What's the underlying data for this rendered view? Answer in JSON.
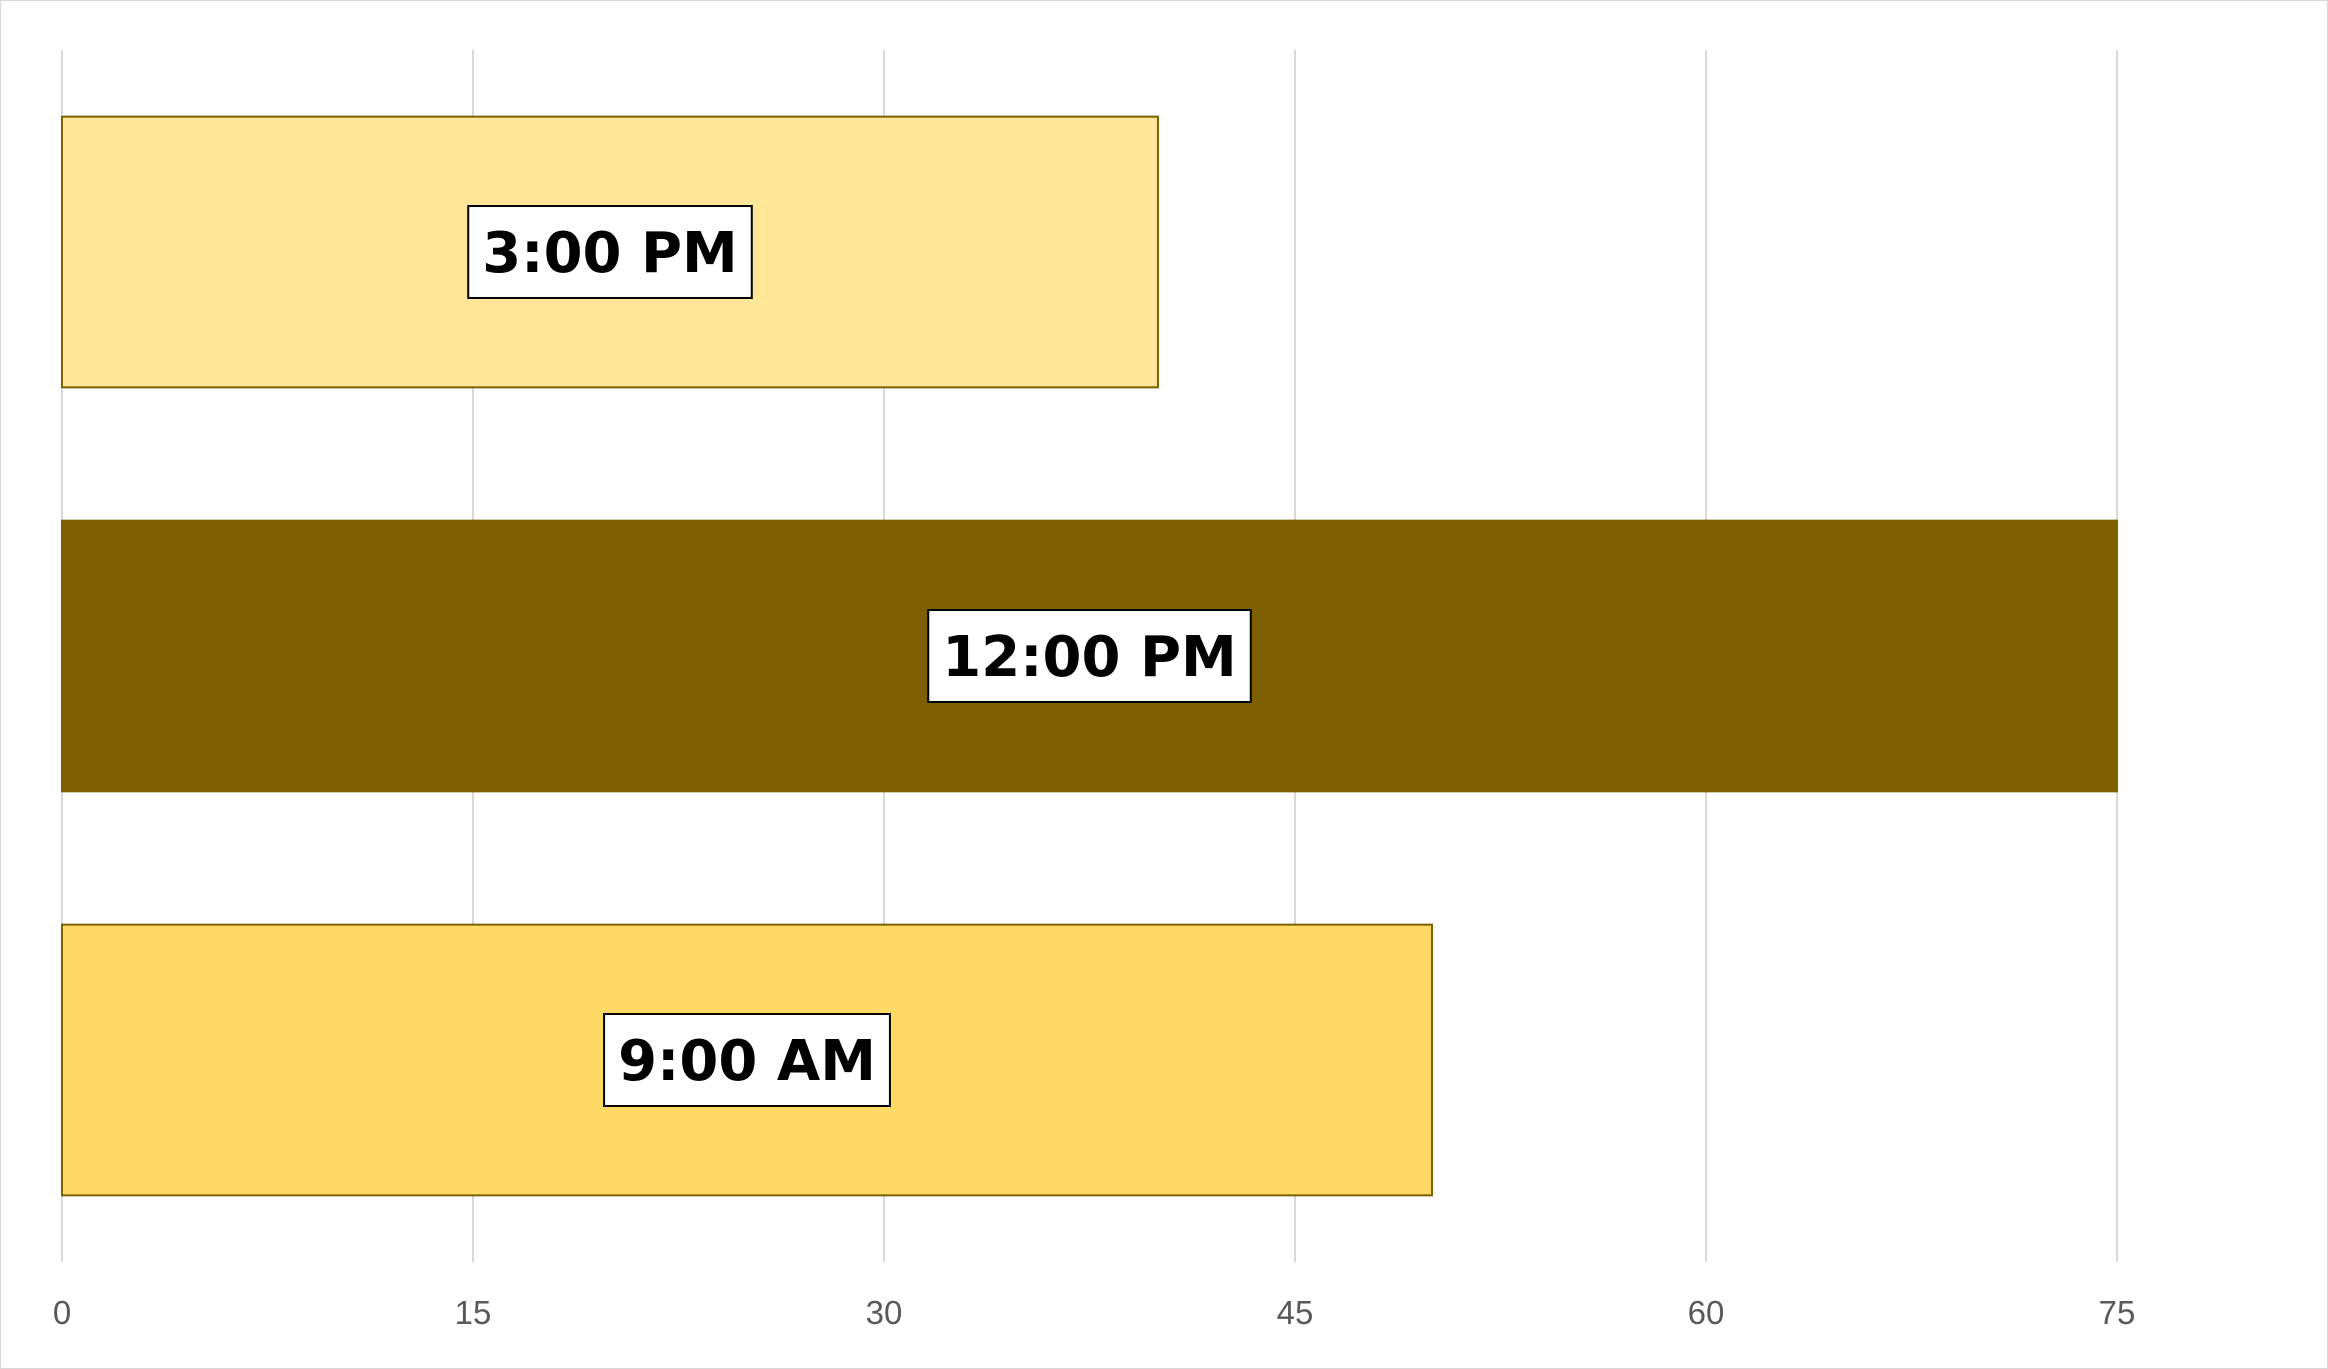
{
  "chart_data": {
    "type": "bar",
    "orientation": "horizontal",
    "categories": [
      "9:00 AM",
      "12:00 PM",
      "3:00 PM"
    ],
    "values": [
      50,
      75,
      40
    ],
    "colors": [
      "#FFD966",
      "#7F6000",
      "#FFE699"
    ],
    "bar_border_color": "#7F6000",
    "x_ticks": [
      "0",
      "15",
      "30",
      "45",
      "60",
      "75"
    ],
    "xlim": [
      0,
      75
    ],
    "gridlines": true,
    "gridline_color": "#d9d9d9",
    "title": "",
    "xlabel": "",
    "ylabel": "",
    "data_labels": "category names",
    "legend": "none"
  }
}
